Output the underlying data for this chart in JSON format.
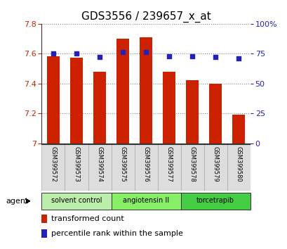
{
  "title": "GDS3556 / 239657_x_at",
  "categories": [
    "GSM399572",
    "GSM399573",
    "GSM399574",
    "GSM399575",
    "GSM399576",
    "GSM399577",
    "GSM399578",
    "GSM399579",
    "GSM399580"
  ],
  "bar_values": [
    7.58,
    7.57,
    7.48,
    7.7,
    7.71,
    7.48,
    7.42,
    7.4,
    7.19
  ],
  "dot_values": [
    75,
    75,
    72,
    76,
    76,
    73,
    73,
    72,
    71
  ],
  "ylim_left": [
    7.0,
    7.8
  ],
  "ylim_right": [
    0,
    100
  ],
  "yticks_left": [
    7.0,
    7.2,
    7.4,
    7.6,
    7.8
  ],
  "yticks_right": [
    0,
    25,
    50,
    75,
    100
  ],
  "bar_color": "#cc2200",
  "dot_color": "#2222bb",
  "grid_color": "#888888",
  "bg_color": "#ffffff",
  "agent_groups": [
    {
      "label": "solvent control",
      "start": 0,
      "end": 3,
      "color": "#bbeeaa"
    },
    {
      "label": "angiotensin II",
      "start": 3,
      "end": 6,
      "color": "#88ee66"
    },
    {
      "label": "torcetrapib",
      "start": 6,
      "end": 9,
      "color": "#44cc44"
    }
  ],
  "legend_bar_label": "transformed count",
  "legend_dot_label": "percentile rank within the sample",
  "xlabel_agent": "agent",
  "title_fontsize": 11,
  "tick_fontsize": 8,
  "label_fontsize": 8,
  "cat_fontsize": 6,
  "legend_fontsize": 8
}
